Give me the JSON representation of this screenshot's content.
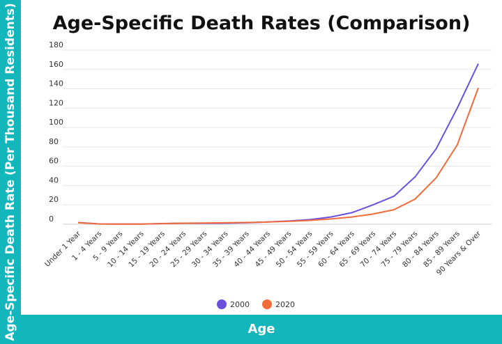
{
  "chart_data": {
    "type": "line",
    "title": "Age-Specific Death Rates (Comparison)",
    "xlabel": "Age",
    "ylabel": "Age-Specific Death Rate (Per Thousand Residents)",
    "ylim": [
      0,
      180
    ],
    "yticks": [
      0,
      20,
      40,
      60,
      80,
      100,
      120,
      140,
      160,
      180
    ],
    "grid": true,
    "legend": "bottom",
    "categories": [
      "Under 1 Year",
      "1 - 4 Years",
      "5 - 9 Years",
      "10 - 14 Years",
      "15 - 19 Years",
      "20 - 24 Years",
      "25 - 29 Years",
      "30 - 34 Years",
      "35 - 39 Years",
      "40 - 44 Years",
      "45 - 49 Years",
      "50 - 54 Years",
      "55 - 59 Years",
      "60 - 64 Years",
      "65 - 69 Years",
      "70 - 74 Years",
      "75 - 79 Years",
      "80 - 84 Years",
      "85 - 89 Years",
      "90 Years & Over"
    ],
    "series": [
      {
        "name": "2000",
        "color": "#6a4fe0",
        "values": [
          1.8,
          0.3,
          0.2,
          0.2,
          0.7,
          1.0,
          1.0,
          1.1,
          1.5,
          2.3,
          3.3,
          4.8,
          7.5,
          12,
          20,
          29,
          49,
          78,
          120,
          166
        ]
      },
      {
        "name": "2020",
        "color": "#f26b3a",
        "values": [
          1.6,
          0.3,
          0.2,
          0.2,
          0.6,
          1.1,
          1.3,
          1.5,
          1.8,
          2.3,
          3.0,
          4.0,
          5.5,
          7.5,
          10.5,
          15,
          26,
          48,
          82,
          141
        ]
      }
    ]
  },
  "colors": {
    "band": "#13b6ba"
  }
}
